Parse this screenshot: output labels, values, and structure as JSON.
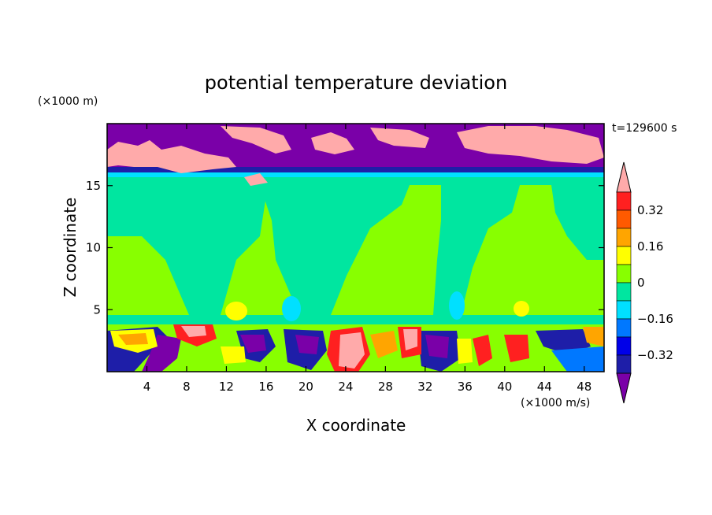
{
  "chart_data": {
    "type": "heatmap",
    "title": "potential temperature deviation",
    "xlabel": "X coordinate",
    "ylabel": "Z coordinate",
    "x_unit": "(×1000 m/s)",
    "y_unit": "(×1000 m)",
    "time_label": "t=129600 s",
    "xlim": [
      0,
      50
    ],
    "ylim": [
      0,
      20
    ],
    "x_ticks": [
      4,
      8,
      12,
      16,
      20,
      24,
      28,
      32,
      36,
      40,
      44,
      48
    ],
    "y_ticks": [
      5,
      10,
      15
    ],
    "colorbar": {
      "labels": [
        "0.32",
        "0.16",
        "0",
        "−0.16",
        "−0.32"
      ],
      "label_values": [
        0.32,
        0.16,
        0,
        -0.16,
        -0.32
      ],
      "levels": [
        -0.4,
        -0.32,
        -0.24,
        -0.16,
        -0.08,
        0,
        0.08,
        0.16,
        0.24,
        0.32,
        0.4
      ],
      "colors": [
        "#7a00a8",
        "#1e1ea8",
        "#0000e8",
        "#0078ff",
        "#00e0ff",
        "#00e6a0",
        "#88ff00",
        "#ffff00",
        "#ffa500",
        "#ff5a00",
        "#ff2020",
        "#ffaaaa"
      ]
    },
    "regions": [
      {
        "band": "z 16.2-20 km",
        "description": "purple (below -0.4) with pink (above 0.4) patches"
      },
      {
        "band": "z 15.5-16.2 km",
        "description": "thin dark blue / cyan layer"
      },
      {
        "band": "z 4-15.5 km",
        "description": "mostly green, near 0"
      },
      {
        "band": "z 0-4 km",
        "description": "strong mixed anomalies"
      }
    ]
  }
}
